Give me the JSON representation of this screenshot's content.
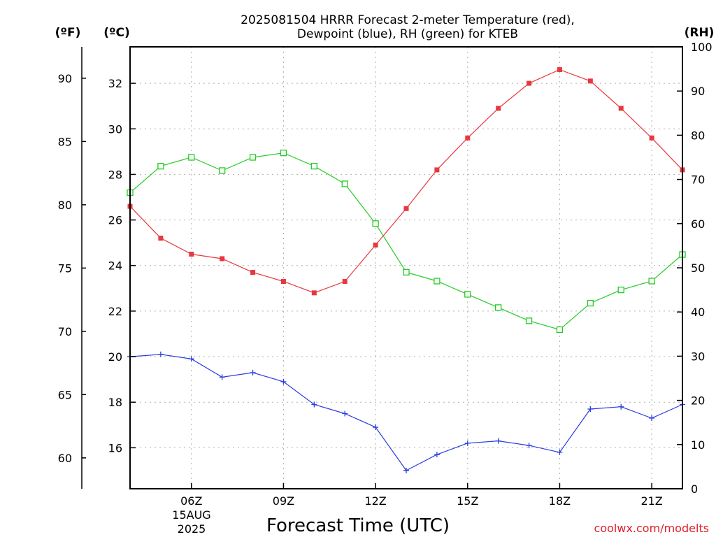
{
  "chart_data": {
    "type": "line",
    "title_line1": "2025081504 HRRR Forecast 2-meter Temperature (red),",
    "title_line2": "Dewpoint (blue), RH (green) for KTEB",
    "xlabel": "Forecast Time (UTC)",
    "unit_f": "(ºF)",
    "unit_c": "(ºC)",
    "unit_rh": "(RH)",
    "date_label_day": "15AUG",
    "date_label_year": "2025",
    "watermark": "coolwx.com/modelts",
    "x_hours": [
      4,
      5,
      6,
      7,
      8,
      9,
      10,
      11,
      12,
      13,
      14,
      15,
      16,
      17,
      18,
      19,
      20,
      21,
      22
    ],
    "x_range": [
      4,
      22
    ],
    "x_ticks": [
      {
        "hour": 6,
        "label": "06Z"
      },
      {
        "hour": 9,
        "label": "09Z"
      },
      {
        "hour": 12,
        "label": "12Z"
      },
      {
        "hour": 15,
        "label": "15Z"
      },
      {
        "hour": 18,
        "label": "18Z"
      },
      {
        "hour": 21,
        "label": "21Z"
      }
    ],
    "axis_c": {
      "range": [
        14.2,
        33.6
      ],
      "ticks": [
        16,
        18,
        20,
        22,
        24,
        26,
        28,
        30,
        32
      ]
    },
    "axis_f": {
      "ticks": [
        60,
        65,
        70,
        75,
        80,
        85,
        90
      ]
    },
    "axis_rh": {
      "range": [
        0,
        100
      ],
      "ticks": [
        0,
        10,
        20,
        30,
        40,
        50,
        60,
        70,
        80,
        90,
        100
      ]
    },
    "grid": true,
    "series": [
      {
        "name": "Temperature",
        "axis": "c",
        "color": "#e8383d",
        "marker": "filled-square",
        "values": [
          26.6,
          25.2,
          24.5,
          24.3,
          23.7,
          23.3,
          22.8,
          23.3,
          24.9,
          26.5,
          28.2,
          29.6,
          30.9,
          32.0,
          32.6,
          32.1,
          30.9,
          29.6,
          28.2
        ]
      },
      {
        "name": "Dewpoint",
        "axis": "c",
        "color": "#2a3be0",
        "marker": "plus",
        "values": [
          20.0,
          20.1,
          19.9,
          19.1,
          19.3,
          18.9,
          17.9,
          17.5,
          16.9,
          15.0,
          15.7,
          16.2,
          16.3,
          16.1,
          15.8,
          17.7,
          17.8,
          17.3,
          17.9
        ]
      },
      {
        "name": "RH",
        "axis": "rh",
        "color": "#22cc22",
        "marker": "open-square",
        "values": [
          67,
          73,
          75,
          72,
          75,
          76,
          73,
          69,
          60,
          49,
          47,
          44,
          41,
          38,
          36,
          42,
          45,
          47,
          53
        ]
      }
    ]
  }
}
